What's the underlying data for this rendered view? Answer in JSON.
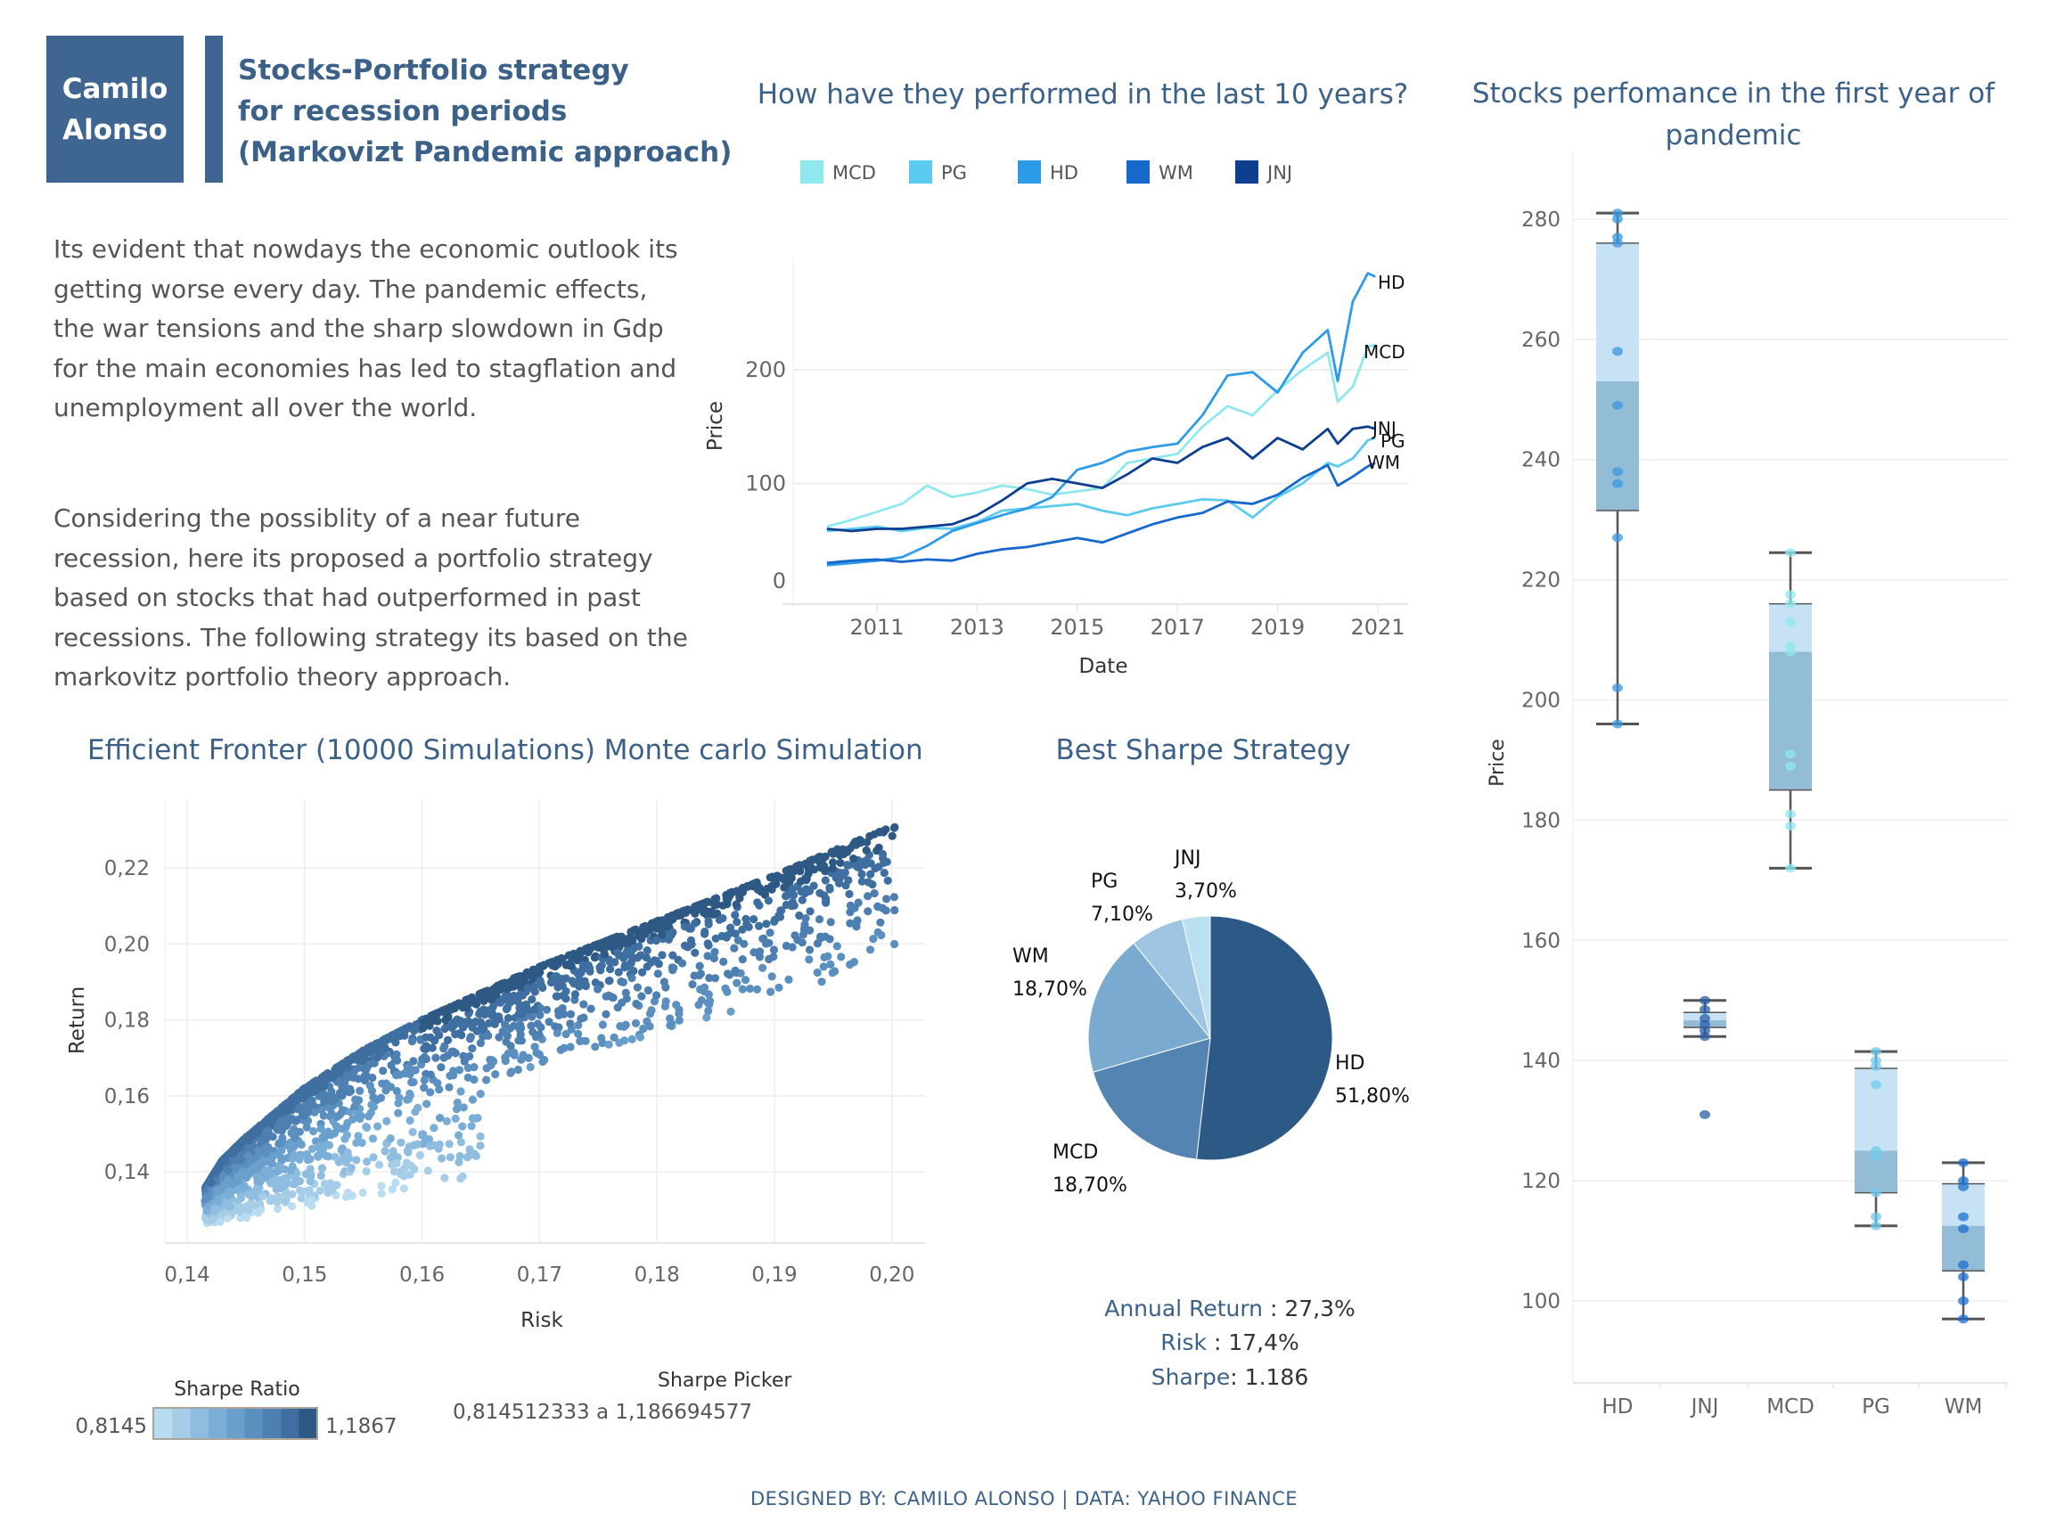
{
  "header": {
    "author_line1": "Camilo",
    "author_line2": "Alonso",
    "title_line1": "Stocks-Portfolio strategy",
    "title_line2": "for recession periods",
    "title_line3": "(Markovizt Pandemic approach)"
  },
  "intro": {
    "paragraph1": "Its evident that nowdays the economic outlook its getting worse every day. The pandemic effects, the war tensions and the sharp slowdown in Gdp for the main economies has led to  stagflation and unemployment all over the world.",
    "paragraph2": "Considering the possiblity of a near future recession, here its proposed a portfolio strategy based on stocks that had outperformed in past recessions. The following strategy its based on the markovitz portfolio theory approach."
  },
  "footer": "DESIGNED BY: CAMILO ALONSO | DATA: YAHOO FINANCE",
  "stats": {
    "return_label": "Annual Return",
    "return_value": ": 27,3%",
    "risk_label": "Risk",
    "risk_value": ": 17,4%",
    "sharpe_label": "Sharpe",
    "sharpe_value": ": 1.186"
  },
  "colors": {
    "accent": "#3e6690",
    "title": "#3c6189",
    "MCD": "#8ee8ee",
    "PG": "#5ccbf0",
    "HD": "#2e9be8",
    "WM": "#1668cc",
    "JNJ": "#0d3e8f"
  },
  "chart_data": [
    {
      "id": "line",
      "type": "line",
      "title_prefix": "How have they performed in the ",
      "title_bold": "last 10 years?",
      "xlabel": "Date",
      "ylabel": "Price",
      "xlim": [
        2010,
        2021.3
      ],
      "ylim": [
        0,
        290
      ],
      "xticks": [
        "2011",
        "2013",
        "2015",
        "2017",
        "2019",
        "2021"
      ],
      "yticks": [
        "0",
        "100",
        "200"
      ],
      "grid": true,
      "legend": "top",
      "series": [
        {
          "name": "MCD",
          "x": [
            2010,
            2010.5,
            2011,
            2011.5,
            2012,
            2012.5,
            2013,
            2013.5,
            2014,
            2014.5,
            2015,
            2015.5,
            2016,
            2016.5,
            2017,
            2017.5,
            2018,
            2018.5,
            2019,
            2019.5,
            2020,
            2020.2,
            2020.5,
            2020.8,
            2020.95
          ],
          "y": [
            62,
            68,
            75,
            82,
            98,
            88,
            92,
            98,
            95,
            90,
            93,
            96,
            118,
            122,
            126,
            150,
            168,
            160,
            182,
            200,
            215,
            172,
            185,
            220,
            222
          ]
        },
        {
          "name": "PG",
          "x": [
            2010,
            2010.5,
            2011,
            2011.5,
            2012,
            2012.5,
            2013,
            2013.5,
            2014,
            2014.5,
            2015,
            2015.5,
            2016,
            2016.5,
            2017,
            2017.5,
            2018,
            2018.5,
            2019,
            2019.5,
            2020,
            2020.2,
            2020.5,
            2020.8,
            2020.95
          ],
          "y": [
            58,
            60,
            62,
            58,
            61,
            60,
            66,
            76,
            78,
            80,
            82,
            76,
            72,
            78,
            82,
            86,
            85,
            70,
            88,
            100,
            118,
            115,
            122,
            138,
            140
          ]
        },
        {
          "name": "HD",
          "x": [
            2010,
            2010.5,
            2011,
            2011.5,
            2012,
            2012.5,
            2013,
            2013.5,
            2014,
            2014.5,
            2015,
            2015.5,
            2016,
            2016.5,
            2017,
            2017.5,
            2018,
            2018.5,
            2019,
            2019.5,
            2020,
            2020.2,
            2020.5,
            2020.8,
            2020.95
          ],
          "y": [
            28,
            30,
            32,
            35,
            45,
            58,
            65,
            72,
            78,
            88,
            112,
            118,
            128,
            132,
            135,
            160,
            195,
            198,
            180,
            215,
            235,
            190,
            260,
            285,
            282
          ]
        },
        {
          "name": "WM",
          "x": [
            2010,
            2010.5,
            2011,
            2011.5,
            2012,
            2012.5,
            2013,
            2013.5,
            2014,
            2014.5,
            2015,
            2015.5,
            2016,
            2016.5,
            2017,
            2017.5,
            2018,
            2018.5,
            2019,
            2019.5,
            2020,
            2020.2,
            2020.5,
            2020.8,
            2020.95
          ],
          "y": [
            30,
            32,
            33,
            31,
            33,
            32,
            38,
            42,
            44,
            48,
            52,
            48,
            56,
            64,
            70,
            74,
            84,
            82,
            90,
            105,
            116,
            98,
            106,
            115,
            118
          ]
        },
        {
          "name": "JNJ",
          "x": [
            2010,
            2010.5,
            2011,
            2011.5,
            2012,
            2012.5,
            2013,
            2013.5,
            2014,
            2014.5,
            2015,
            2015.5,
            2016,
            2016.5,
            2017,
            2017.5,
            2018,
            2018.5,
            2019,
            2019.5,
            2020,
            2020.2,
            2020.5,
            2020.8,
            2020.95
          ],
          "y": [
            60,
            58,
            60,
            60,
            62,
            64,
            72,
            85,
            100,
            104,
            100,
            96,
            108,
            122,
            118,
            132,
            140,
            122,
            140,
            130,
            148,
            135,
            148,
            150,
            148
          ]
        }
      ]
    },
    {
      "id": "scatter",
      "type": "scatter",
      "title": "Efficient Fronter (10000 Simulations) Monte carlo Simulation",
      "xlabel": "Risk",
      "ylabel": "Return",
      "xlim": [
        0.138,
        0.203
      ],
      "ylim": [
        0.122,
        0.235
      ],
      "xticks": [
        "0,14",
        "0,15",
        "0,16",
        "0,17",
        "0,18",
        "0,19",
        "0,20"
      ],
      "yticks": [
        "0,14",
        "0,16",
        "0,18",
        "0,20",
        "0,22"
      ],
      "grid": true,
      "simulations": 10000,
      "frontier": {
        "risk": [
          0.141,
          0.143,
          0.145,
          0.15,
          0.155,
          0.16,
          0.17,
          0.18,
          0.19,
          0.2
        ],
        "return": [
          0.133,
          0.143,
          0.149,
          0.162,
          0.172,
          0.18,
          0.194,
          0.206,
          0.218,
          0.231
        ]
      },
      "color_legend": {
        "title": "Sharpe Ratio",
        "min": "0,8145",
        "max": "1,1867",
        "colors": [
          "#b9dcf0",
          "#a5cde8",
          "#8fbde0",
          "#7aaed7",
          "#6b9fcb",
          "#5b8fbf",
          "#4e7fb1",
          "#3f6ea0",
          "#2e5985"
        ]
      },
      "picker": {
        "title": "Sharpe Picker",
        "value": "0,814512333 a 1,186694577"
      }
    },
    {
      "id": "pie",
      "type": "pie",
      "title": "Best Sharpe Strategy",
      "slices": [
        {
          "label": "HD",
          "value": 51.8,
          "text": "51,80%",
          "color": "#2c5985"
        },
        {
          "label": "MCD",
          "value": 18.7,
          "text": "18,70%",
          "color": "#5384b2"
        },
        {
          "label": "WM",
          "value": 18.7,
          "text": "18,70%",
          "color": "#7aaad0"
        },
        {
          "label": "PG",
          "value": 7.1,
          "text": "7,10%",
          "color": "#9ec6e3"
        },
        {
          "label": "JNJ",
          "value": 3.7,
          "text": "3,70%",
          "color": "#badff0"
        }
      ]
    },
    {
      "id": "box",
      "type": "box",
      "title_line1": "Stocks perfomance in the first year of",
      "title_line2": "pandemic",
      "ylabel": "Price",
      "ylim": [
        85,
        290
      ],
      "yticks": [
        "100",
        "120",
        "140",
        "160",
        "180",
        "200",
        "220",
        "240",
        "260",
        "280"
      ],
      "categories": [
        "HD",
        "JNJ",
        "MCD",
        "PG",
        "WM"
      ],
      "boxes": [
        {
          "name": "HD",
          "min": 196,
          "q1": 231.5,
          "median": 253,
          "q3": 276,
          "max": 281,
          "points": [
            281,
            280,
            277,
            276,
            258,
            249,
            238,
            236,
            227,
            202,
            196
          ],
          "color": "#3a98e0"
        },
        {
          "name": "JNJ",
          "min": 144,
          "q1": 145.5,
          "median": 146.7,
          "q3": 148,
          "max": 150,
          "points": [
            150,
            148.5,
            147,
            146,
            145,
            144,
            131
          ],
          "color": "#2a5ea8"
        },
        {
          "name": "MCD",
          "min": 172,
          "q1": 185,
          "median": 208,
          "q3": 216,
          "max": 224.5,
          "points": [
            224.5,
            217.5,
            216,
            213,
            209,
            208,
            191,
            189,
            181,
            179,
            172
          ],
          "color": "#8ee8ee"
        },
        {
          "name": "PG",
          "min": 112.5,
          "q1": 118,
          "median": 125,
          "q3": 138.7,
          "max": 141.5,
          "points": [
            141.5,
            140,
            139,
            136,
            125,
            124,
            118,
            114,
            112.5
          ],
          "color": "#6fcbee"
        },
        {
          "name": "WM",
          "min": 97,
          "q1": 105,
          "median": 112.5,
          "q3": 119.5,
          "max": 123,
          "points": [
            123,
            120,
            119,
            114,
            112,
            106,
            104,
            100,
            97
          ],
          "color": "#1c70d0"
        }
      ]
    }
  ]
}
